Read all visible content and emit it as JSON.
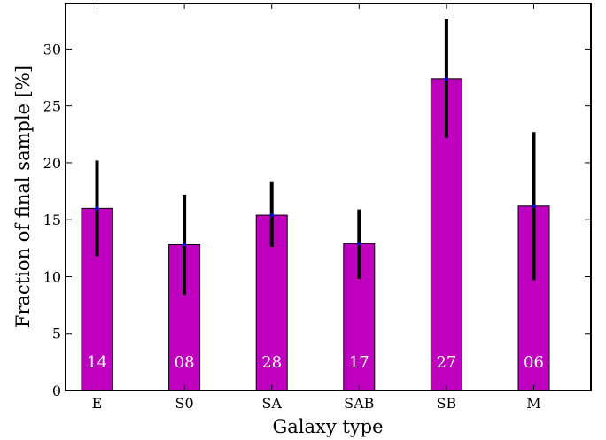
{
  "chart_data": {
    "type": "bar",
    "categories": [
      "E",
      "S0",
      "SA",
      "SAB",
      "SB",
      "M"
    ],
    "values": [
      16.0,
      12.8,
      15.4,
      12.9,
      27.4,
      16.2
    ],
    "error_low": [
      11.8,
      8.4,
      12.6,
      9.8,
      22.2,
      9.7
    ],
    "error_high": [
      20.2,
      17.2,
      18.3,
      15.9,
      32.6,
      22.7
    ],
    "bar_labels": [
      "14",
      "08",
      "28",
      "17",
      "27",
      "06"
    ],
    "xlabel": "Galaxy type",
    "ylabel": "Fraction of final sample [%]",
    "ylim": [
      0,
      34
    ],
    "yticks": [
      0,
      5,
      10,
      15,
      20,
      25,
      30
    ],
    "grid": false,
    "colors": {
      "bar": "#bf00bf",
      "bar_edge": "#000000",
      "errorbar": "#000000",
      "marker": "#0000ff",
      "bar_label": "#ffffff"
    }
  }
}
